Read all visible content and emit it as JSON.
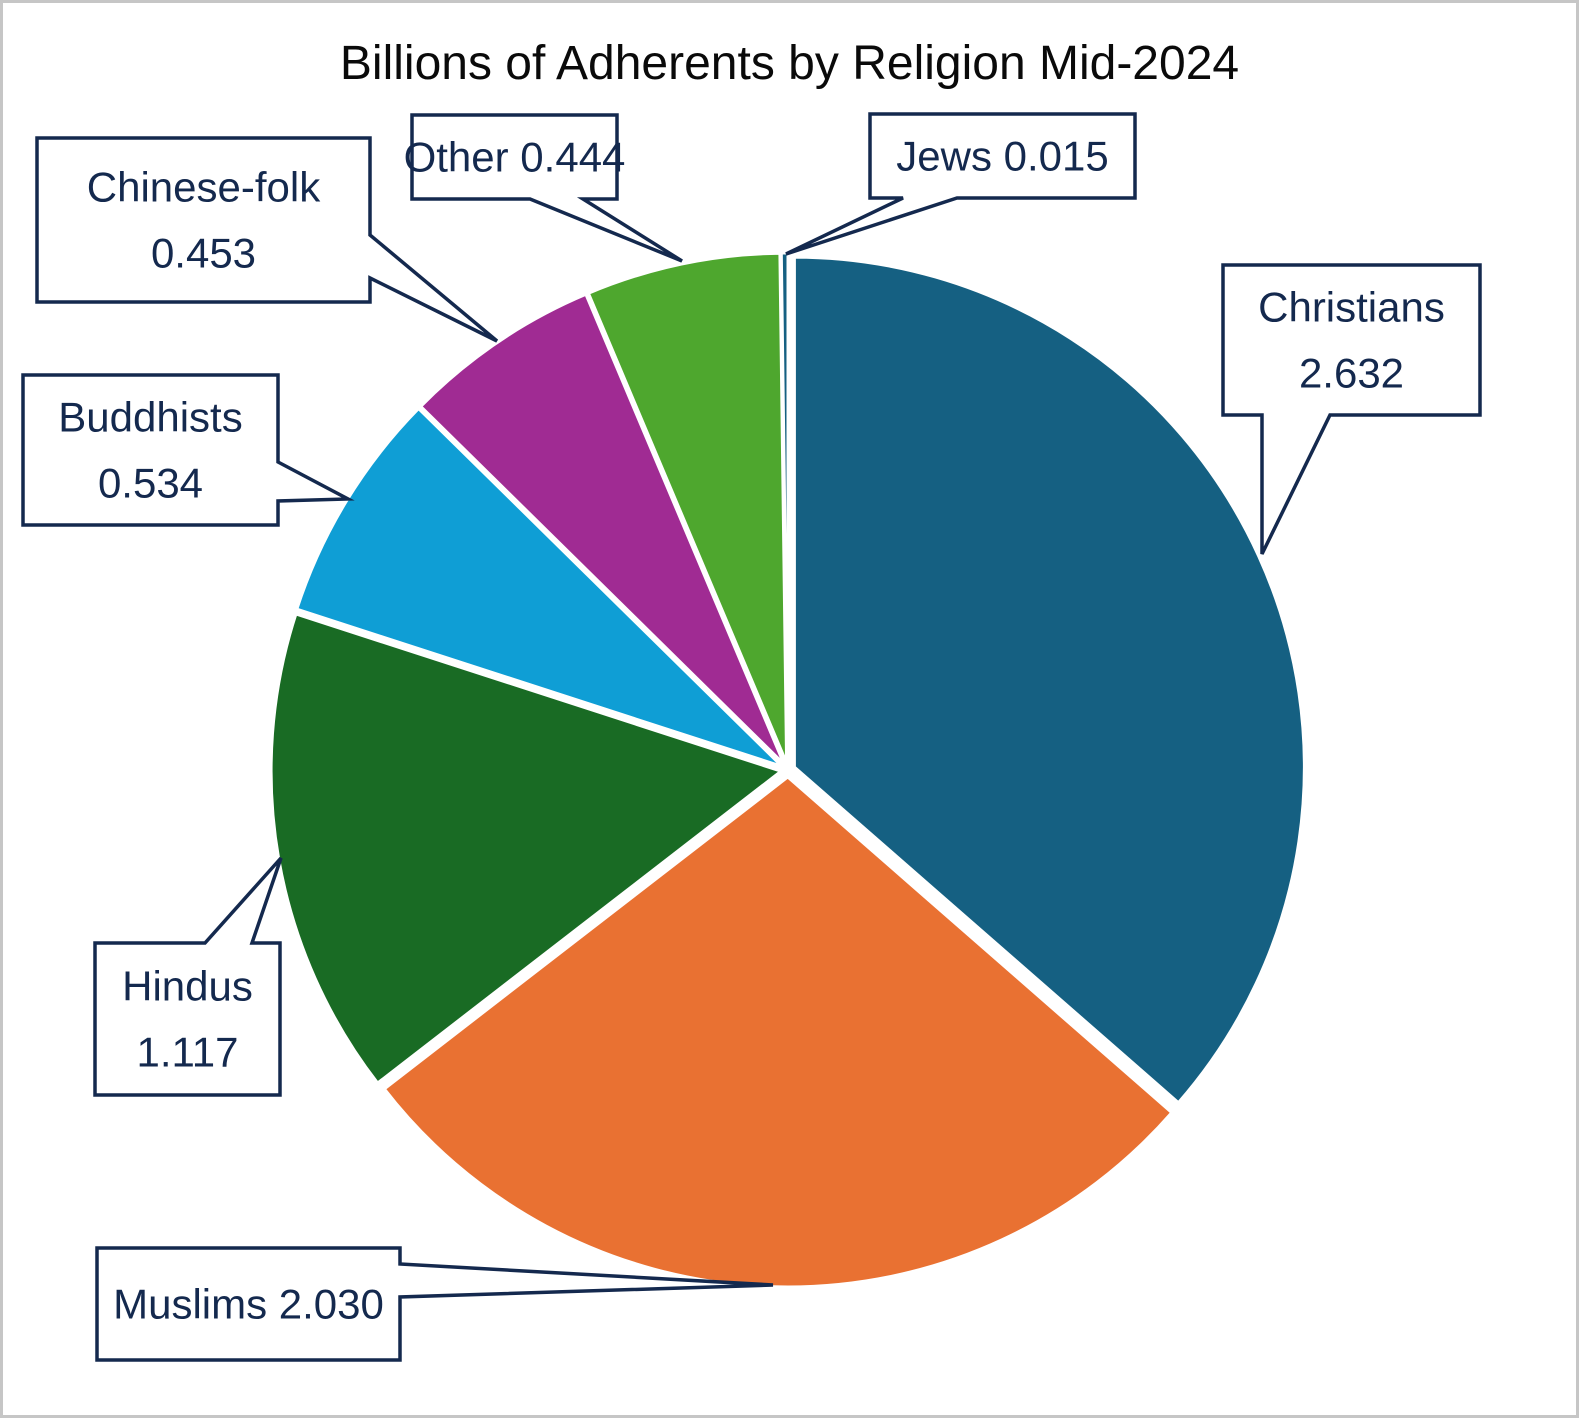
{
  "title": "Billions of Adherents by Religion Mid-2024",
  "style": {
    "background": "#ffffff",
    "frame_border": "#c6c6c6",
    "title_color": "#0a0a0a",
    "callout_color": "#14294e",
    "callout_fill": "#ffffff",
    "slice_gap_color": "#ffffff"
  },
  "chart_data": {
    "type": "pie",
    "title": "Billions of Adherents by Religion Mid-2024",
    "unit": "billions of adherents",
    "total": 7.225,
    "start_angle_deg": 0,
    "direction": "clockwise",
    "legend": "none",
    "label_style": "rectangular-callouts",
    "slices": [
      {
        "label": "Christians",
        "value": 2.632,
        "display": "2.632",
        "color": "#156082",
        "callout_lines": [
          "Christians",
          "2.632"
        ]
      },
      {
        "label": "Muslims",
        "value": 2.03,
        "display": "2.030",
        "color": "#E97132",
        "callout_lines": [
          "Muslims 2.030"
        ]
      },
      {
        "label": "Hindus",
        "value": 1.117,
        "display": "1.117",
        "color": "#196B24",
        "callout_lines": [
          "Hindus",
          "1.117"
        ]
      },
      {
        "label": "Buddhists",
        "value": 0.534,
        "display": "0.534",
        "color": "#0F9ED5",
        "callout_lines": [
          "Buddhists",
          "0.534"
        ]
      },
      {
        "label": "Chinese-folk",
        "value": 0.453,
        "display": "0.453",
        "color": "#A02B93",
        "callout_lines": [
          "Chinese-folk",
          "0.453"
        ]
      },
      {
        "label": "Other",
        "value": 0.444,
        "display": "0.444",
        "color": "#4EA72E",
        "callout_lines": [
          "Other 0.444"
        ]
      },
      {
        "label": "Jews",
        "value": 0.015,
        "display": "0.015",
        "color": "#156082",
        "callout_lines": [
          "Jews 0.015"
        ]
      }
    ]
  }
}
